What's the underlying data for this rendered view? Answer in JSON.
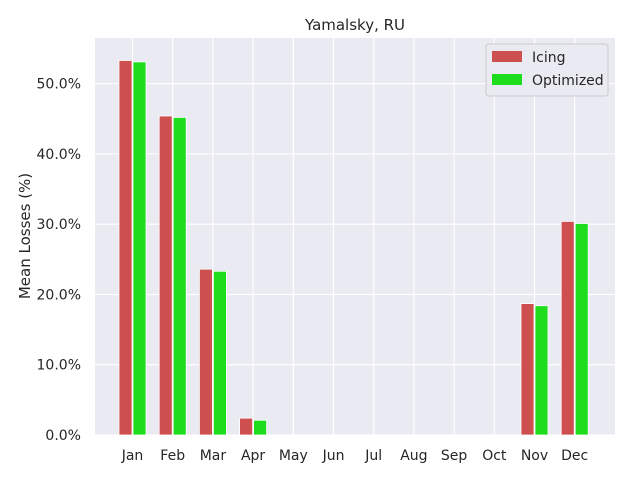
{
  "chart_data": {
    "type": "bar",
    "title": "Yamalsky, RU",
    "xlabel": "",
    "ylabel": "Mean Losses (%)",
    "categories": [
      "Jan",
      "Feb",
      "Mar",
      "Apr",
      "May",
      "Jun",
      "Jul",
      "Aug",
      "Sep",
      "Oct",
      "Nov",
      "Dec"
    ],
    "series": [
      {
        "name": "Icing",
        "color": "#cd4f4f",
        "values": [
          53.3,
          45.4,
          23.6,
          2.4,
          0.0,
          0.0,
          0.0,
          0.0,
          0.0,
          0.0,
          18.7,
          30.4
        ]
      },
      {
        "name": "Optimized",
        "color": "#1ddd1d",
        "values": [
          53.1,
          45.2,
          23.3,
          2.1,
          0.0,
          0.0,
          0.0,
          0.0,
          0.0,
          0.0,
          18.4,
          30.1
        ]
      }
    ],
    "ylim": [
      0,
      56.5
    ],
    "yticks": [
      0,
      10,
      20,
      30,
      40,
      50
    ],
    "ytick_labels": [
      "0.0%",
      "10.0%",
      "20.0%",
      "30.0%",
      "40.0%",
      "50.0%"
    ],
    "grid": true,
    "background": "#eaeaf2",
    "legend_position": "top-right"
  }
}
